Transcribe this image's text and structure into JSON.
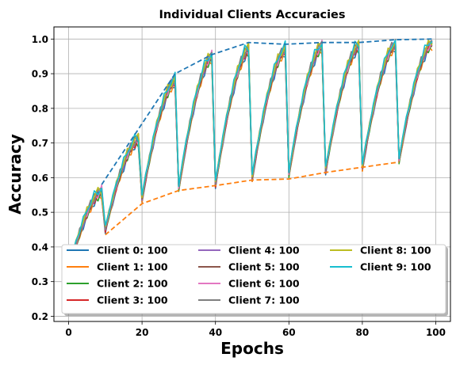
{
  "chart_data": {
    "type": "line",
    "title": "Individual Clients Accuracies",
    "xlabel": "Epochs",
    "ylabel": "Accuracy",
    "xlim": [
      -4,
      104
    ],
    "ylim": [
      0.185,
      1.035
    ],
    "xticks": [
      0,
      20,
      40,
      60,
      80,
      100
    ],
    "yticks": [
      0.2,
      0.3,
      0.4,
      0.5,
      0.6,
      0.7,
      0.8,
      0.9,
      1.0
    ],
    "ytick_labels": [
      "0.2",
      "0.3",
      "0.4",
      "0.5",
      "0.6",
      "0.7",
      "0.8",
      "0.9",
      "1.0"
    ],
    "xtick_labels": [
      "0",
      "20",
      "40",
      "60",
      "80",
      "100"
    ],
    "grid": true,
    "legend_position": "lower center",
    "legend_columns": 3,
    "colors": [
      "#1f77b4",
      "#ff7f0e",
      "#2ca02c",
      "#d62728",
      "#9467bd",
      "#8c564b",
      "#e377c2",
      "#7f7f7f",
      "#bcbd22",
      "#17becf"
    ],
    "series": [
      {
        "name": "Client 0: 100"
      },
      {
        "name": "Client 1: 100"
      },
      {
        "name": "Client 2: 100"
      },
      {
        "name": "Client 3: 100"
      },
      {
        "name": "Client 4: 100"
      },
      {
        "name": "Client 5: 100"
      },
      {
        "name": "Client 6: 100"
      },
      {
        "name": "Client 7: 100"
      },
      {
        "name": "Client 8: 100"
      },
      {
        "name": "Client 9: 100"
      }
    ],
    "cycles": [
      {
        "start": 0,
        "end": 9,
        "y_start": 0.33,
        "y_end": 0.56
      },
      {
        "start": 10,
        "end": 19,
        "y_start": 0.45,
        "y_end": 0.71
      },
      {
        "start": 20,
        "end": 29,
        "y_start": 0.54,
        "y_end": 0.88
      },
      {
        "start": 30,
        "end": 39,
        "y_start": 0.57,
        "y_end": 0.95
      },
      {
        "start": 40,
        "end": 49,
        "y_start": 0.58,
        "y_end": 0.97
      },
      {
        "start": 50,
        "end": 59,
        "y_start": 0.6,
        "y_end": 0.97
      },
      {
        "start": 60,
        "end": 69,
        "y_start": 0.61,
        "y_end": 0.98
      },
      {
        "start": 70,
        "end": 79,
        "y_start": 0.62,
        "y_end": 0.98
      },
      {
        "start": 80,
        "end": 89,
        "y_start": 0.63,
        "y_end": 0.985
      },
      {
        "start": 90,
        "end": 99,
        "y_start": 0.65,
        "y_end": 0.99
      }
    ],
    "upper_envelope": {
      "color": "#1f77b4",
      "style": "dashed",
      "x": [
        9,
        19,
        29,
        39,
        49,
        59,
        69,
        79,
        89,
        99
      ],
      "y": [
        0.58,
        0.74,
        0.9,
        0.955,
        0.99,
        0.985,
        0.99,
        0.99,
        0.998,
        1.0
      ]
    },
    "lower_envelope": {
      "color": "#ff7f0e",
      "style": "dashed",
      "x": [
        10,
        20,
        30,
        40,
        50,
        60,
        70,
        80,
        90
      ],
      "y": [
        0.435,
        0.525,
        0.563,
        0.577,
        0.593,
        0.596,
        0.615,
        0.63,
        0.645
      ]
    }
  }
}
